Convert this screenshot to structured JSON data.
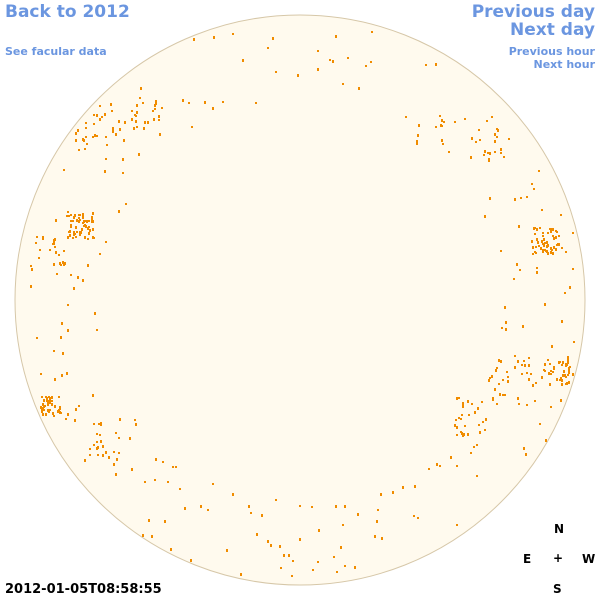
{
  "nav": {
    "back": "Back to 2012",
    "facular": "See facular data",
    "previous_day": "Previous day",
    "next_day": "Next day",
    "previous_hour": "Previous hour",
    "next_hour": "Next hour"
  },
  "timestamp": "2012-01-05T08:58:55",
  "compass": {
    "north": "N",
    "east": "E",
    "center": "+",
    "west": "W",
    "south": "S"
  }
}
